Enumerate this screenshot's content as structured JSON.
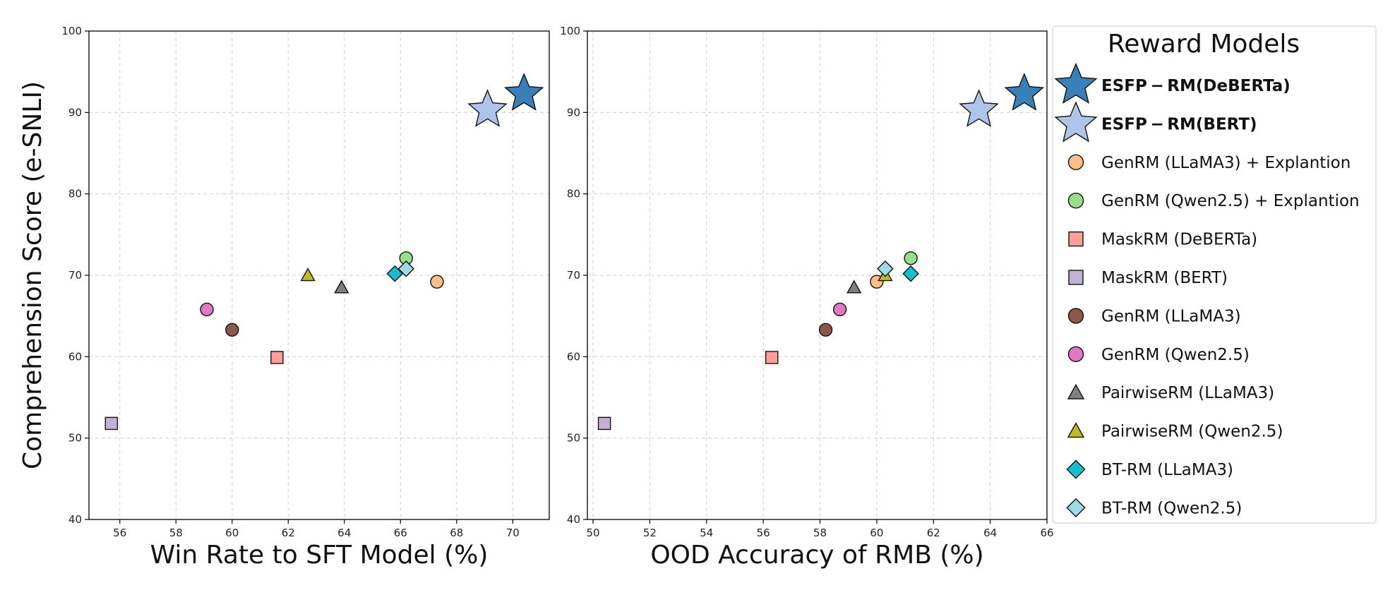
{
  "chart_data": {
    "type": "scatter",
    "legend": {
      "title": "Reward Models",
      "placement": "right"
    },
    "series": [
      {
        "name": "ESFP − RM(DeBERTa)",
        "marker": "star-large",
        "color": "#3a7fb8",
        "bold": true
      },
      {
        "name": "ESFP − RM(BERT)",
        "marker": "star-large",
        "color": "#aec4e8",
        "bold": true
      },
      {
        "name": "GenRM (LLaMA3) + Explantion",
        "marker": "circle",
        "color": "#fdbf85"
      },
      {
        "name": "GenRM (Qwen2.5) + Explantion",
        "marker": "circle",
        "color": "#98df8a"
      },
      {
        "name": "MaskRM (DeBERTa)",
        "marker": "square",
        "color": "#ff9f9a"
      },
      {
        "name": "MaskRM (BERT)",
        "marker": "square",
        "color": "#c5b0d5"
      },
      {
        "name": "GenRM (LLaMA3)",
        "marker": "circle",
        "color": "#8c564b"
      },
      {
        "name": "GenRM (Qwen2.5)",
        "marker": "circle",
        "color": "#e377c2"
      },
      {
        "name": "PairwiseRM (LLaMA3)",
        "marker": "triangle",
        "color": "#7f7f7f"
      },
      {
        "name": "PairwiseRM (Qwen2.5)",
        "marker": "triangle",
        "color": "#bcbd22"
      },
      {
        "name": "BT-RM (LLaMA3)",
        "marker": "diamond",
        "color": "#17becf"
      },
      {
        "name": "BT-RM (Qwen2.5)",
        "marker": "diamond",
        "color": "#9edae5"
      }
    ],
    "panels": [
      {
        "xlabel": "Win Rate to SFT Model (%)",
        "ylabel": "Comprehension Score (e-SNLI)",
        "xlim": [
          54.9,
          71.3
        ],
        "ylim": [
          40,
          100
        ],
        "xticks": [
          "56",
          "58",
          "60",
          "62",
          "64",
          "66",
          "68",
          "70"
        ],
        "yticks": [
          "40",
          "50",
          "60",
          "70",
          "80",
          "90",
          "100"
        ],
        "grid": true,
        "points": [
          {
            "series": 0,
            "x": 70.4,
            "y": 92.3
          },
          {
            "series": 1,
            "x": 69.1,
            "y": 90.3
          },
          {
            "series": 2,
            "x": 67.3,
            "y": 69.2
          },
          {
            "series": 3,
            "x": 66.2,
            "y": 72.1
          },
          {
            "series": 4,
            "x": 61.6,
            "y": 59.9
          },
          {
            "series": 5,
            "x": 55.7,
            "y": 51.8
          },
          {
            "series": 6,
            "x": 60.0,
            "y": 63.3
          },
          {
            "series": 7,
            "x": 59.1,
            "y": 65.8
          },
          {
            "series": 8,
            "x": 63.9,
            "y": 68.5
          },
          {
            "series": 9,
            "x": 62.7,
            "y": 70.0
          },
          {
            "series": 10,
            "x": 65.8,
            "y": 70.2
          },
          {
            "series": 11,
            "x": 66.2,
            "y": 70.8
          }
        ]
      },
      {
        "xlabel": "OOD Accuracy of RMB (%)",
        "ylabel": "",
        "xlim": [
          49.8,
          66.0
        ],
        "ylim": [
          40,
          100
        ],
        "xticks": [
          "50",
          "52",
          "54",
          "56",
          "58",
          "60",
          "62",
          "64",
          "66"
        ],
        "yticks": [
          "40",
          "50",
          "60",
          "70",
          "80",
          "90",
          "100"
        ],
        "grid": true,
        "points": [
          {
            "series": 0,
            "x": 65.2,
            "y": 92.3
          },
          {
            "series": 1,
            "x": 63.6,
            "y": 90.3
          },
          {
            "series": 2,
            "x": 60.0,
            "y": 69.2
          },
          {
            "series": 3,
            "x": 61.2,
            "y": 72.1
          },
          {
            "series": 4,
            "x": 56.3,
            "y": 59.9
          },
          {
            "series": 5,
            "x": 50.4,
            "y": 51.8
          },
          {
            "series": 6,
            "x": 58.2,
            "y": 63.3
          },
          {
            "series": 7,
            "x": 58.7,
            "y": 65.8
          },
          {
            "series": 8,
            "x": 59.2,
            "y": 68.5
          },
          {
            "series": 9,
            "x": 60.3,
            "y": 70.0
          },
          {
            "series": 10,
            "x": 61.2,
            "y": 70.2
          },
          {
            "series": 11,
            "x": 60.3,
            "y": 70.8
          }
        ]
      }
    ]
  }
}
